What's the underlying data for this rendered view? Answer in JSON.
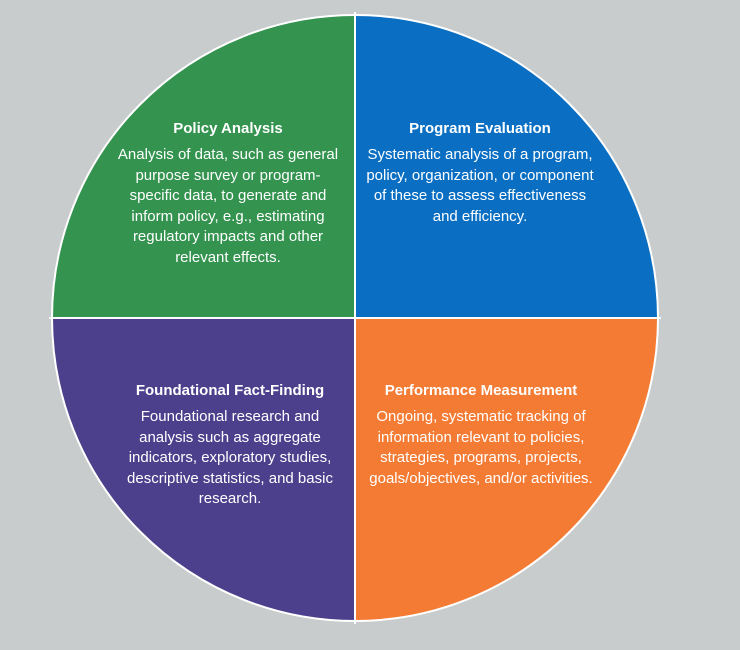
{
  "colors": {
    "background": "#c8cccd",
    "divider": "#ffffff",
    "policy_analysis": "#33934f",
    "program_evaluation": "#0a6fc2",
    "foundational_fact_finding": "#4c408d",
    "performance_measurement": "#f47b34"
  },
  "quadrants": {
    "top_left": {
      "title": "Policy Analysis",
      "body": "Analysis of data, such as general purpose survey or program-specific data, to generate and inform policy, e.g., estimating regulatory impacts and other relevant effects."
    },
    "top_right": {
      "title": "Program Evaluation",
      "body": "Systematic analysis of a program, policy, organization, or component of these to assess effectiveness and efficiency."
    },
    "bottom_left": {
      "title": "Foundational Fact-Finding",
      "body": "Foundational research and analysis such as aggregate indicators, exploratory studies, descriptive statistics, and basic research."
    },
    "bottom_right": {
      "title": "Performance Measurement",
      "body": "Ongoing, systematic tracking of information relevant to policies, strategies, programs, projects, goals/objectives, and/or activities."
    }
  }
}
